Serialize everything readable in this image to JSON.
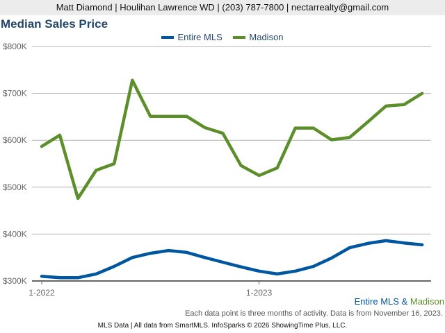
{
  "header": {
    "contact": "Matt Diamond | Houlihan Lawrence WD | (203) 787-7800 | nectarrealty@gmail.com"
  },
  "colors": {
    "entire_mls": "#0057a0",
    "madison": "#5c8f2a",
    "title": "#24476b",
    "grid": "#b3b3b3",
    "axis": "#666666"
  },
  "legend": {
    "items": [
      {
        "label": "Entire MLS",
        "color": "#0057a0"
      },
      {
        "label": "Madison",
        "color": "#5c8f2a"
      }
    ]
  },
  "caption": {
    "part1": "Entire MLS",
    "amp": " & ",
    "part2": "Madison"
  },
  "note": "Each data point is three months of activity. Data is from November 16, 2023.",
  "footer": "MLS Data | All data from SmartMLS. InfoSparks © 2026 ShowingTime Plus, LLC.",
  "chart_data": {
    "type": "line",
    "title": "Median Sales Price",
    "xlabel": "",
    "ylabel": "",
    "ylim": [
      300000,
      800000
    ],
    "yticks": [
      "$300K",
      "$400K",
      "$500K",
      "$600K",
      "$700K",
      "$800K"
    ],
    "ytick_values": [
      300,
      400,
      500,
      600,
      700,
      800
    ],
    "xticks": [
      {
        "label": "1-2022",
        "index": 0
      },
      {
        "label": "1-2023",
        "index": 12
      }
    ],
    "x": [
      "1-2022",
      "2-2022",
      "3-2022",
      "4-2022",
      "5-2022",
      "6-2022",
      "7-2022",
      "8-2022",
      "9-2022",
      "10-2022",
      "11-2022",
      "12-2022",
      "1-2023",
      "2-2023",
      "3-2023",
      "4-2023",
      "5-2023",
      "6-2023",
      "7-2023",
      "8-2023",
      "9-2023",
      "10-2023"
    ],
    "grid": true,
    "legend_position": "top",
    "series": [
      {
        "name": "Entire MLS",
        "color": "#0057a0",
        "values": [
          310,
          307,
          307,
          315,
          331,
          350,
          359,
          365,
          361,
          350,
          340,
          330,
          321,
          315,
          321,
          331,
          349,
          371,
          380,
          386,
          381,
          377
        ]
      },
      {
        "name": "Madison",
        "color": "#5c8f2a",
        "values": [
          587,
          611,
          476,
          536,
          550,
          728,
          651,
          651,
          651,
          627,
          615,
          546,
          525,
          541,
          626,
          626,
          601,
          606,
          639,
          673,
          676,
          700
        ]
      }
    ],
    "units": "thousands USD"
  }
}
